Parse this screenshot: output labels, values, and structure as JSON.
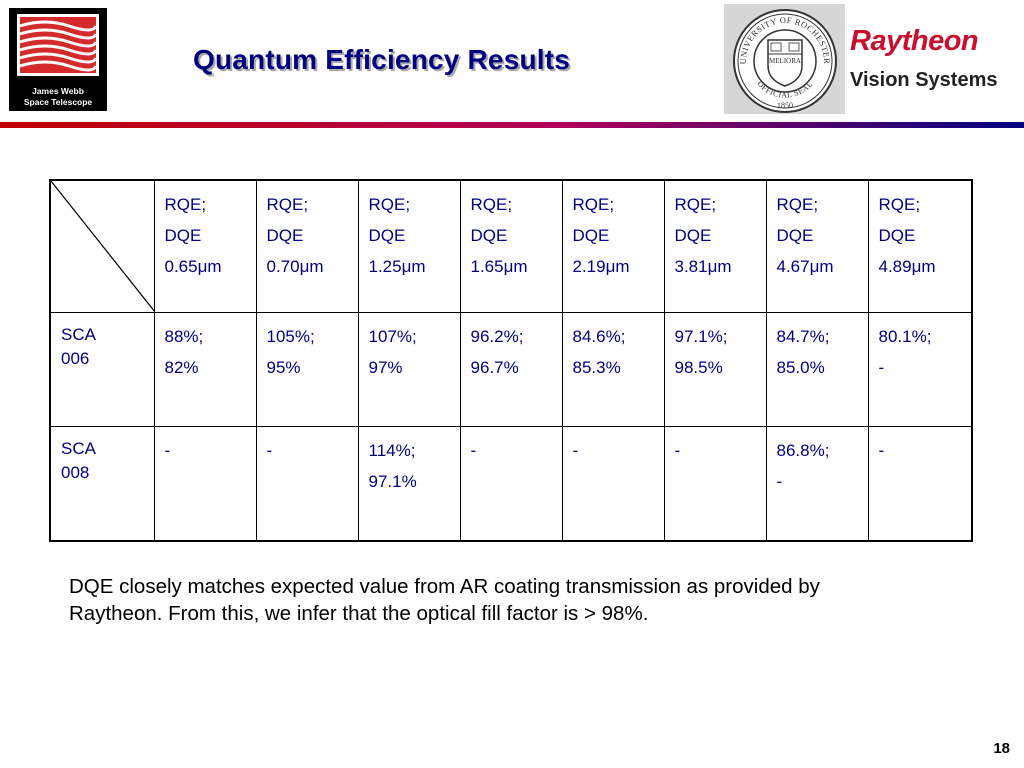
{
  "title": "Quantum Efficiency Results",
  "logo_left": {
    "line1": "James Webb",
    "line2": "Space Telescope"
  },
  "logo_right": {
    "brand": "Raytheon",
    "division": "Vision Systems"
  },
  "seal": {
    "top_text": "UNIVERSITY OF ROCHESTER",
    "bottom_text": "OFFICIAL SEAL",
    "motto": "MELIORA",
    "year": "1850"
  },
  "colors": {
    "title": "#000080",
    "table_text": "#000080",
    "raytheon_red": "#c8102e",
    "rule_start": "#c00000",
    "rule_end": "#000080"
  },
  "table": {
    "headers": [
      {
        "line1": "RQE;",
        "line2": "DQE",
        "line3": "0.65μm"
      },
      {
        "line1": "RQE;",
        "line2": "DQE",
        "line3": "0.70μm"
      },
      {
        "line1": "RQE;",
        "line2": "DQE",
        "line3": "1.25μm"
      },
      {
        "line1": "RQE;",
        "line2": "DQE",
        "line3": "1.65μm"
      },
      {
        "line1": "RQE;",
        "line2": "DQE",
        "line3": "2.19μm"
      },
      {
        "line1": "RQE;",
        "line2": "DQE",
        "line3": "3.81μm"
      },
      {
        "line1": "RQE;",
        "line2": "DQE",
        "line3": "4.67μm"
      },
      {
        "line1": "RQE;",
        "line2": "DQE",
        "line3": "4.89μm"
      }
    ],
    "rows": [
      {
        "label": {
          "line1": "SCA",
          "line2": "006"
        },
        "cells": [
          {
            "rqe": "88%;",
            "dqe": "82%"
          },
          {
            "rqe": "105%;",
            "dqe": "95%"
          },
          {
            "rqe": "107%;",
            "dqe": "97%"
          },
          {
            "rqe": "96.2%;",
            "dqe": "96.7%"
          },
          {
            "rqe": "84.6%;",
            "dqe": "85.3%"
          },
          {
            "rqe": "97.1%;",
            "dqe": "98.5%"
          },
          {
            "rqe": "84.7%;",
            "dqe": "85.0%"
          },
          {
            "rqe": "80.1%;",
            "dqe": "-"
          }
        ]
      },
      {
        "label": {
          "line1": "SCA",
          "line2": "008"
        },
        "cells": [
          {
            "rqe": "-",
            "dqe": ""
          },
          {
            "rqe": "-",
            "dqe": ""
          },
          {
            "rqe": "114%;",
            "dqe": "97.1%"
          },
          {
            "rqe": "-",
            "dqe": ""
          },
          {
            "rqe": "-",
            "dqe": ""
          },
          {
            "rqe": "-",
            "dqe": ""
          },
          {
            "rqe": "86.8%;",
            "dqe": "-"
          },
          {
            "rqe": "-",
            "dqe": ""
          }
        ]
      }
    ]
  },
  "note": "DQE closely matches expected value from AR coating transmission as provided by Raytheon.  From this, we infer that the optical fill factor is > 98%.",
  "page_number": "18"
}
